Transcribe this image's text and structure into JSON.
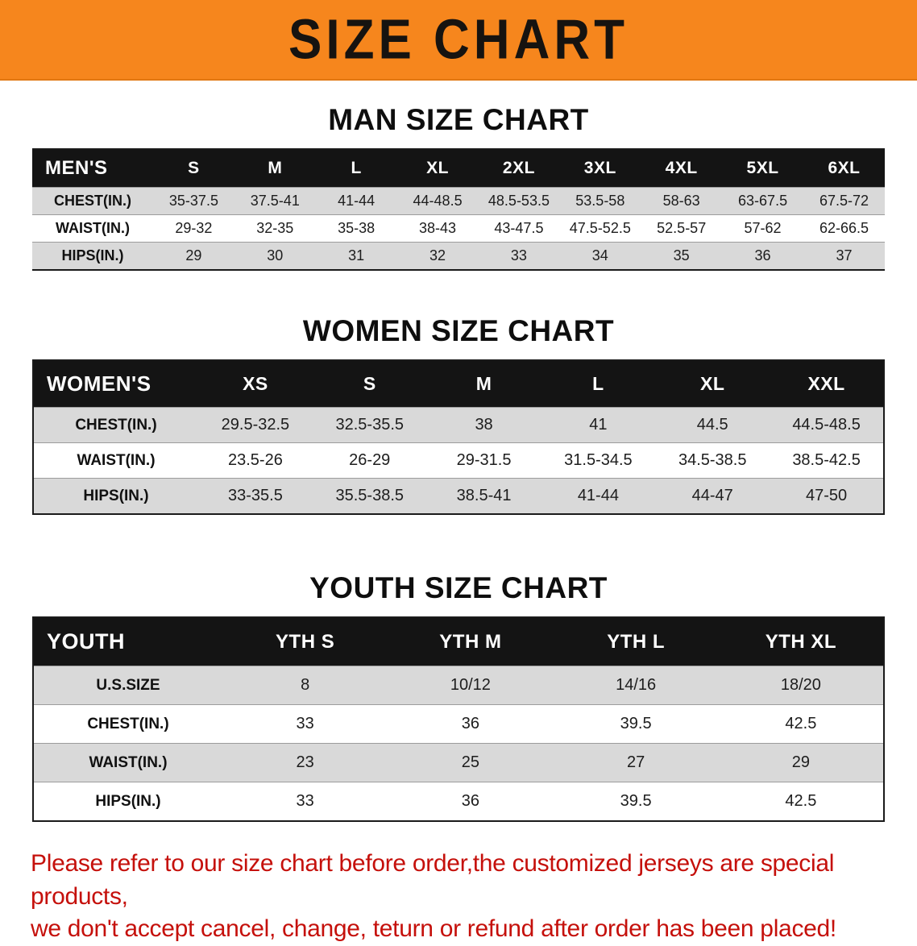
{
  "banner": {
    "title": "SIZE CHART"
  },
  "colors": {
    "banner_bg": "#f6861d",
    "table_header_bg": "#141414",
    "shaded_row_bg": "#d9d9d9",
    "notice_text": "#c5100b"
  },
  "sections": [
    {
      "id": "mens",
      "heading": "MAN SIZE CHART",
      "table": {
        "header": [
          "MEN'S",
          "S",
          "M",
          "L",
          "XL",
          "2XL",
          "3XL",
          "4XL",
          "5XL",
          "6XL"
        ],
        "rows": [
          [
            "CHEST(IN.)",
            "35-37.5",
            "37.5-41",
            "41-44",
            "44-48.5",
            "48.5-53.5",
            "53.5-58",
            "58-63",
            "63-67.5",
            "67.5-72"
          ],
          [
            "WAIST(IN.)",
            "29-32",
            "32-35",
            "35-38",
            "38-43",
            "43-47.5",
            "47.5-52.5",
            "52.5-57",
            "57-62",
            "62-66.5"
          ],
          [
            "HIPS(IN.)",
            "29",
            "30",
            "31",
            "32",
            "33",
            "34",
            "35",
            "36",
            "37"
          ]
        ]
      }
    },
    {
      "id": "womens",
      "heading": "WOMEN SIZE CHART",
      "table": {
        "header": [
          "WOMEN'S",
          "XS",
          "S",
          "M",
          "L",
          "XL",
          "XXL"
        ],
        "rows": [
          [
            "CHEST(IN.)",
            "29.5-32.5",
            "32.5-35.5",
            "38",
            "41",
            "44.5",
            "44.5-48.5"
          ],
          [
            "WAIST(IN.)",
            "23.5-26",
            "26-29",
            "29-31.5",
            "31.5-34.5",
            "34.5-38.5",
            "38.5-42.5"
          ],
          [
            "HIPS(IN.)",
            "33-35.5",
            "35.5-38.5",
            "38.5-41",
            "41-44",
            "44-47",
            "47-50"
          ]
        ]
      }
    },
    {
      "id": "youth",
      "heading": "YOUTH SIZE CHART",
      "table": {
        "header": [
          "YOUTH",
          "YTH S",
          "YTH M",
          "YTH L",
          "YTH XL"
        ],
        "rows": [
          [
            "U.S.SIZE",
            "8",
            "10/12",
            "14/16",
            "18/20"
          ],
          [
            "CHEST(IN.)",
            "33",
            "36",
            "39.5",
            "42.5"
          ],
          [
            "WAIST(IN.)",
            "23",
            "25",
            "27",
            "29"
          ],
          [
            "HIPS(IN.)",
            "33",
            "36",
            "39.5",
            "42.5"
          ]
        ]
      }
    }
  ],
  "footer": {
    "line1": "Please refer to our size chart before order,the customized jerseys are special products,",
    "line2": "we don't accept cancel, change, teturn or refund after order has been placed!"
  }
}
